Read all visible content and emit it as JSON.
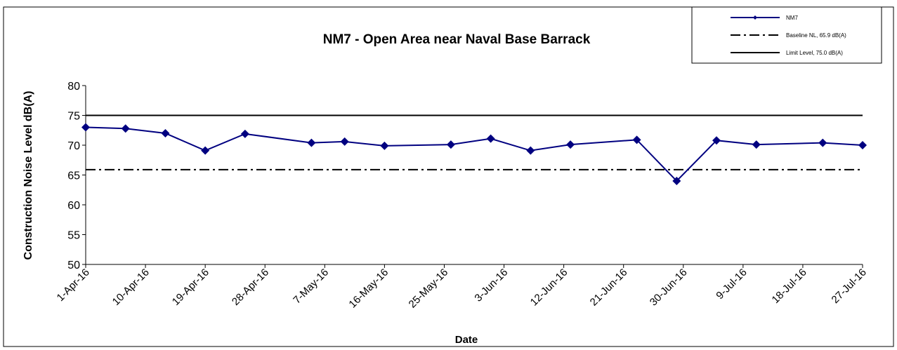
{
  "chart_data": {
    "type": "line",
    "title": "NM7 -  Open Area near Naval Base Barrack",
    "x_label": "Date",
    "y_label": "Construction Noise Level  dB(A)",
    "x": [
      "2016-04-01",
      "2016-04-07",
      "2016-04-13",
      "2016-04-19",
      "2016-04-25",
      "2016-05-05",
      "2016-05-10",
      "2016-05-16",
      "2016-05-26",
      "2016-06-01",
      "2016-06-07",
      "2016-06-13",
      "2016-06-23",
      "2016-06-29",
      "2016-07-05",
      "2016-07-11",
      "2016-07-21",
      "2016-07-27"
    ],
    "series": [
      {
        "name": "NM7",
        "color": "#000080",
        "values": [
          73.0,
          72.8,
          72.0,
          69.1,
          71.9,
          70.4,
          70.6,
          69.9,
          70.1,
          71.1,
          69.1,
          70.1,
          70.9,
          64.0,
          70.8,
          70.1,
          70.4,
          70.0
        ]
      }
    ],
    "reference_lines": [
      {
        "name": "Baseline NL, 65.9 dB(A)",
        "value": 65.9,
        "style": "dashdot",
        "color": "#000000"
      },
      {
        "name": "Limit Level, 75.0 dB(A)",
        "value": 75.0,
        "style": "solid",
        "color": "#000000"
      }
    ],
    "xlim": [
      "2016-04-01",
      "2016-07-27"
    ],
    "xticks": [
      {
        "value": "2016-04-01",
        "label": "1-Apr-16"
      },
      {
        "value": "2016-04-10",
        "label": "10-Apr-16"
      },
      {
        "value": "2016-04-19",
        "label": "19-Apr-16"
      },
      {
        "value": "2016-04-28",
        "label": "28-Apr-16"
      },
      {
        "value": "2016-05-07",
        "label": "7-May-16"
      },
      {
        "value": "2016-05-16",
        "label": "16-May-16"
      },
      {
        "value": "2016-05-25",
        "label": "25-May-16"
      },
      {
        "value": "2016-06-03",
        "label": "3-Jun-16"
      },
      {
        "value": "2016-06-12",
        "label": "12-Jun-16"
      },
      {
        "value": "2016-06-21",
        "label": "21-Jun-16"
      },
      {
        "value": "2016-06-30",
        "label": "30-Jun-16"
      },
      {
        "value": "2016-07-09",
        "label": "9-Jul-16"
      },
      {
        "value": "2016-07-18",
        "label": "18-Jul-16"
      },
      {
        "value": "2016-07-27",
        "label": "27-Jul-16"
      }
    ],
    "ylim": [
      50,
      80
    ],
    "yticks": [
      50,
      55,
      60,
      65,
      70,
      75,
      80
    ],
    "grid": false,
    "legend": "upper right"
  }
}
